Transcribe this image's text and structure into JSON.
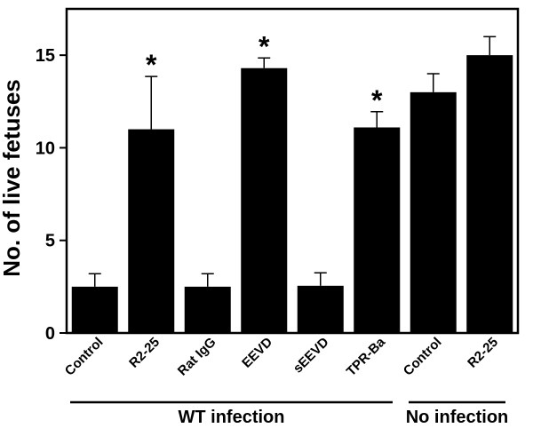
{
  "chart_data": {
    "type": "bar",
    "title": "",
    "xlabel": "",
    "ylabel": "No. of live fetuses",
    "ylim": [
      0,
      17.5
    ],
    "yticks": [
      0,
      5,
      10,
      15
    ],
    "grid": false,
    "categories": [
      "Control",
      "R2-25",
      "Rat IgG",
      "EEVD",
      "sEEVD",
      "TPR-Ba",
      "Control",
      "R2-25"
    ],
    "values": [
      2.5,
      11.0,
      2.5,
      14.3,
      2.55,
      11.1,
      13.0,
      15.0
    ],
    "errors": [
      0.7,
      2.85,
      0.7,
      0.55,
      0.7,
      0.85,
      1.0,
      1.0
    ],
    "significant": [
      false,
      true,
      false,
      true,
      false,
      true,
      false,
      false
    ],
    "significance_marker": "*",
    "bar_color": "#000000",
    "groups": [
      {
        "label": "WT infection",
        "start": 0,
        "end": 5
      },
      {
        "label": "No infection",
        "start": 6,
        "end": 7
      }
    ]
  }
}
